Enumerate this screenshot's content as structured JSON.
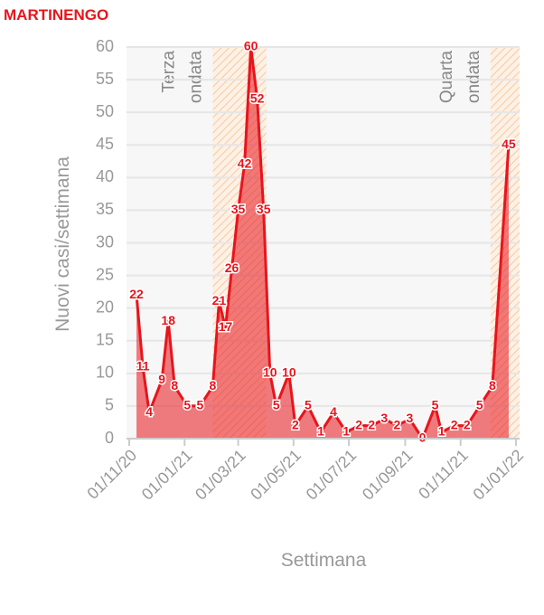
{
  "chart_data": {
    "type": "area",
    "title": "MARTINENGO",
    "x_label": "Settimana",
    "y_label": "Nuovi casi/settimana",
    "x": [
      "2020-11-09",
      "2020-11-16",
      "2020-11-23",
      "2020-12-07",
      "2020-12-14",
      "2020-12-21",
      "2021-01-04",
      "2021-01-18",
      "2021-02-01",
      "2021-02-08",
      "2021-02-15",
      "2021-02-22",
      "2021-03-01",
      "2021-03-08",
      "2021-03-15",
      "2021-03-22",
      "2021-03-29",
      "2021-04-05",
      "2021-04-12",
      "2021-04-26",
      "2021-05-03",
      "2021-05-17",
      "2021-05-31",
      "2021-06-14",
      "2021-06-28",
      "2021-07-12",
      "2021-07-26",
      "2021-08-09",
      "2021-08-23",
      "2021-09-06",
      "2021-09-20",
      "2021-10-04",
      "2021-10-11",
      "2021-10-25",
      "2021-11-08",
      "2021-11-22",
      "2021-12-06",
      "2021-12-24"
    ],
    "values": [
      22,
      11,
      4,
      9,
      18,
      8,
      5,
      5,
      8,
      21,
      17,
      26,
      35,
      42,
      60,
      52,
      35,
      10,
      5,
      10,
      2,
      5,
      1,
      4,
      1,
      2,
      2,
      3,
      2,
      3,
      0,
      5,
      1,
      2,
      2,
      5,
      8,
      45
    ],
    "color": "#e8141c",
    "xlim": [
      "2020-10-29",
      "2022-01-05"
    ],
    "xticks": [
      {
        "value": "2020-11-01",
        "label": "01/11/20"
      },
      {
        "value": "2021-01-01",
        "label": "01/01/21"
      },
      {
        "value": "2021-03-01",
        "label": "01/03/21"
      },
      {
        "value": "2021-05-01",
        "label": "01/05/21"
      },
      {
        "value": "2021-07-01",
        "label": "01/07/21"
      },
      {
        "value": "2021-09-01",
        "label": "01/09/21"
      },
      {
        "value": "2021-11-01",
        "label": "01/11/21"
      },
      {
        "value": "2022-01-01",
        "label": "01/01/22"
      }
    ],
    "ylim": [
      0,
      60
    ],
    "yticks": [
      0,
      5,
      10,
      15,
      20,
      25,
      30,
      35,
      40,
      45,
      50,
      55,
      60
    ],
    "grid": true,
    "annotations": [
      {
        "lines": [
          "Terza",
          "ondata"
        ],
        "start": "2021-02-01",
        "end": "2021-04-01"
      },
      {
        "lines": [
          "Quarta",
          "ondata"
        ],
        "start": "2021-12-04",
        "end": "2022-01-05"
      }
    ]
  }
}
